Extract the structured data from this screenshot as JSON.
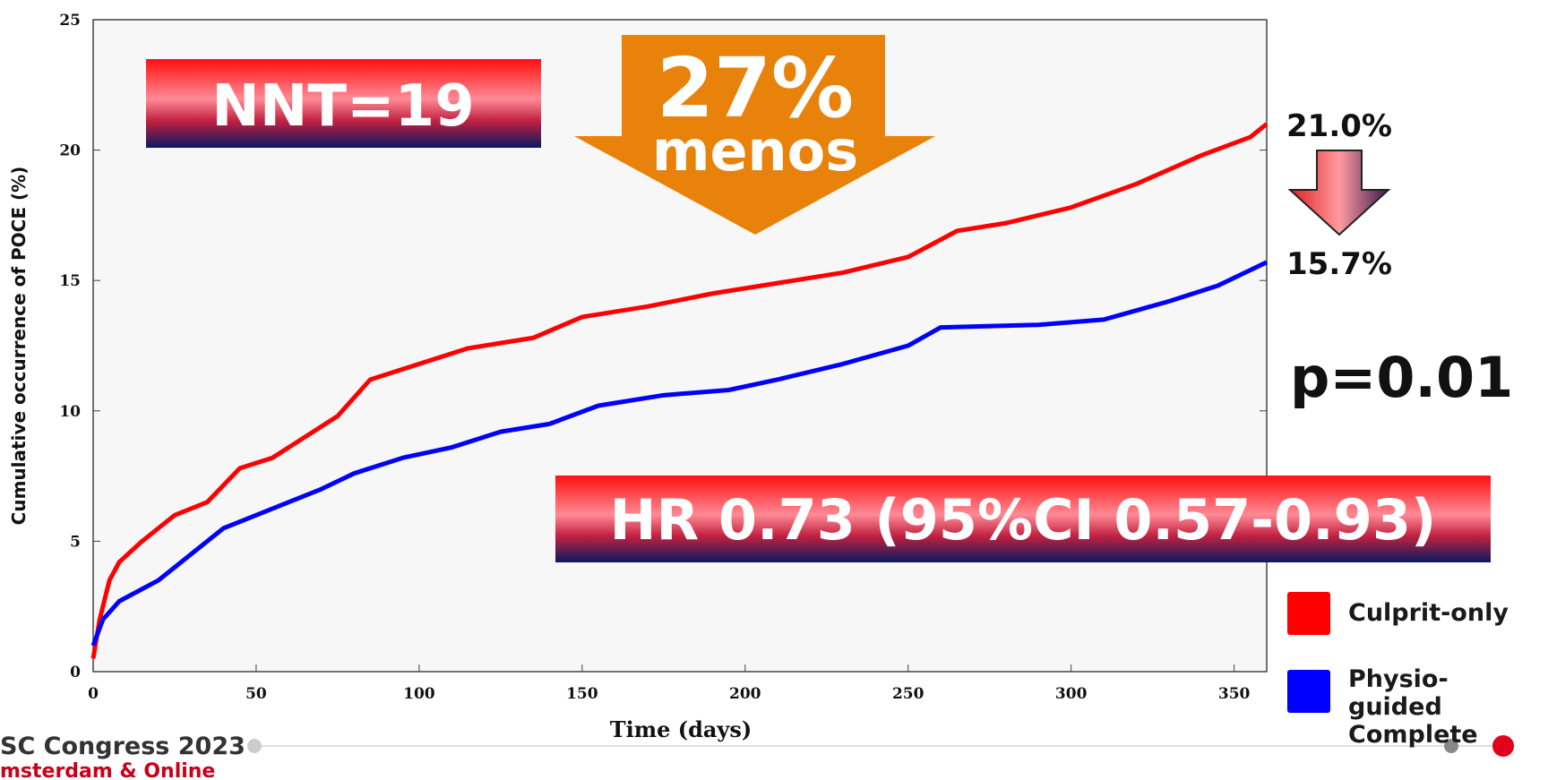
{
  "chart_data": {
    "type": "line",
    "xlabel": "Time (days)",
    "ylabel": "Cumulative occurrence of POCE (%)",
    "xlim": [
      0,
      360
    ],
    "ylim": [
      0,
      25
    ],
    "xticks": [
      0,
      50,
      100,
      150,
      200,
      250,
      300,
      350
    ],
    "yticks": [
      0,
      5,
      10,
      15,
      20,
      25
    ],
    "legend": "right",
    "series": [
      {
        "name": "Culprit-only",
        "color": "#ff0000",
        "x": [
          0,
          2,
          5,
          8,
          15,
          25,
          35,
          45,
          55,
          65,
          75,
          85,
          100,
          115,
          135,
          150,
          170,
          190,
          210,
          230,
          250,
          265,
          280,
          300,
          320,
          340,
          355,
          360
        ],
        "values": [
          0.5,
          2,
          3.5,
          4.2,
          5,
          6,
          6.5,
          7.8,
          8.2,
          9,
          9.8,
          11.2,
          11.8,
          12.4,
          12.8,
          13.6,
          14,
          14.5,
          14.9,
          15.3,
          15.9,
          16.9,
          17.2,
          17.8,
          18.7,
          19.8,
          20.5,
          21.0
        ]
      },
      {
        "name": "Physio-guided Complete",
        "color": "#0000ff",
        "x": [
          0,
          3,
          8,
          20,
          30,
          40,
          50,
          60,
          70,
          80,
          95,
          110,
          125,
          140,
          155,
          175,
          195,
          210,
          230,
          250,
          260,
          290,
          310,
          330,
          345,
          360
        ],
        "values": [
          1,
          2,
          2.7,
          3.5,
          4.5,
          5.5,
          6,
          6.5,
          7,
          7.6,
          8.2,
          8.6,
          9.2,
          9.5,
          10.2,
          10.6,
          10.8,
          11.2,
          11.8,
          12.5,
          13.2,
          13.3,
          13.5,
          14.2,
          14.8,
          15.7
        ]
      }
    ],
    "annotations": {
      "nnt": "NNT=19",
      "reduction": "27%",
      "reduction_word": "menos",
      "end_red": "21.0%",
      "end_blue": "15.7%",
      "p": "p=0.01",
      "hr": "HR 0.73 (95%CI 0.57-0.93)"
    }
  },
  "footer": {
    "event": "SC Congress 2023",
    "place": "msterdam & Online"
  }
}
